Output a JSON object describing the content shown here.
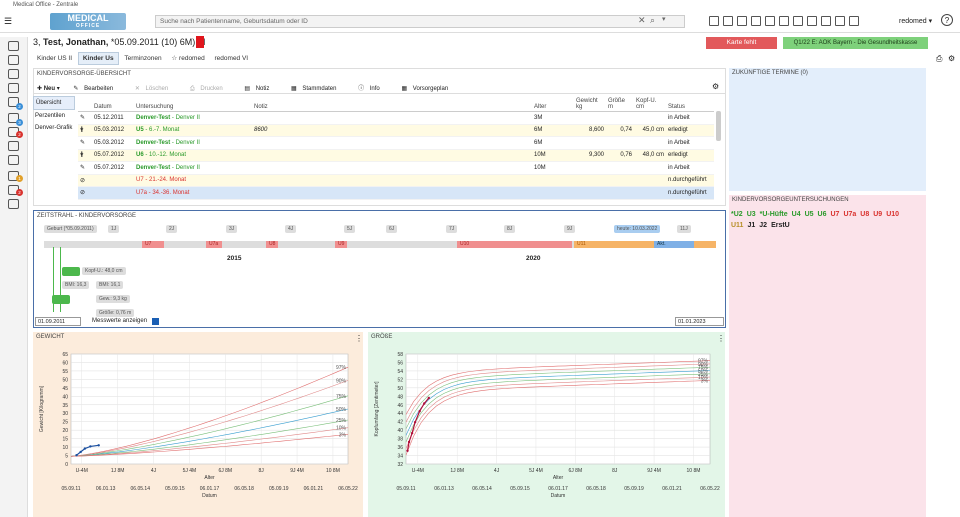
{
  "window_title": "Medical Office - Zentrale",
  "logo": {
    "line1": "MEDICAL",
    "line2": "OFFICE"
  },
  "search": {
    "placeholder": "Suche nach Patientenname, Geburtsdatum oder ID"
  },
  "user": {
    "name": "redomed"
  },
  "patient": {
    "number": "3,",
    "name": "Test, Jonathan,",
    "dob": "*05.09.2011 (10) 6M)",
    "sex": "M"
  },
  "buttons": {
    "karte": "Karte fehlt",
    "insurance": "Q1/22 E: AOK Bayern - Die Gesundheitskasse"
  },
  "tabs": [
    "Kinder US II",
    "Kinder Us",
    "Terminzonen",
    "redomed",
    "redomed VI"
  ],
  "kv": {
    "title": "KINDERVORSORGE-ÜBERSICHT",
    "toolbar": [
      "Neu",
      "Bearbeiten",
      "Löschen",
      "Drucken",
      "Notiz",
      "Stammdaten",
      "Info",
      "Vorsorgeplan"
    ],
    "side": [
      "Übersicht",
      "Perzentilen",
      "Denver-Grafik"
    ],
    "columns": [
      "Datum",
      "Untersuchung",
      "Notiz",
      "Alter",
      "Gewicht",
      "Größe",
      "Kopf-U.",
      "Status"
    ],
    "units": [
      "",
      "",
      "",
      "",
      "kg",
      "m",
      "cm",
      ""
    ],
    "rows": [
      {
        "date": "05.12.2011",
        "name": "Denver-Test",
        "sub": " - Denver II",
        "note": "",
        "age": "3M",
        "w": "",
        "h": "",
        "k": "",
        "status": "in Arbeit",
        "type": "g",
        "hl": ""
      },
      {
        "date": "05.03.2012",
        "name": "U5",
        "sub": " - 6.-7. Monat",
        "note": "8600",
        "age": "6M",
        "w": "8,600",
        "h": "0,74",
        "k": "45,0 cm",
        "status": "erledigt",
        "type": "g",
        "hl": "y"
      },
      {
        "date": "05.03.2012",
        "name": "Denver-Test",
        "sub": " - Denver II",
        "note": "",
        "age": "6M",
        "w": "",
        "h": "",
        "k": "",
        "status": "in Arbeit",
        "type": "g",
        "hl": ""
      },
      {
        "date": "05.07.2012",
        "name": "U6",
        "sub": " - 10.-12. Monat",
        "note": "",
        "age": "10M",
        "w": "9,300",
        "h": "0,76",
        "k": "48,0 cm",
        "status": "erledigt",
        "type": "g",
        "hl": "y"
      },
      {
        "date": "05.07.2012",
        "name": "Denver-Test",
        "sub": " - Denver II",
        "note": "",
        "age": "10M",
        "w": "",
        "h": "",
        "k": "",
        "status": "in Arbeit",
        "type": "g",
        "hl": ""
      },
      {
        "date": "",
        "name": "U7",
        "sub": " - 21.-24. Monat",
        "note": "",
        "age": "",
        "w": "",
        "h": "",
        "k": "",
        "status": "n.durchgeführt",
        "type": "r",
        "hl": "y"
      },
      {
        "date": "",
        "name": "U7a",
        "sub": " - 34.-36. Monat",
        "note": "",
        "age": "",
        "w": "",
        "h": "",
        "k": "",
        "status": "n.durchgeführt",
        "type": "r",
        "hl": "b"
      }
    ]
  },
  "zeitstrahl": {
    "title": "ZEITSTRAHL - KINDERVORSORGE",
    "top_pills": [
      "Geburt (*05.09.2011)",
      "1J",
      "2J",
      "3J",
      "4J",
      "5J",
      "6J",
      "7J",
      "8J",
      "9J",
      "heute: 10.03.2022",
      "11J"
    ],
    "bars": [
      "U7",
      "U7a",
      "U8",
      "U9",
      "U10",
      "U11",
      "Akt."
    ],
    "years": [
      "2015",
      "2020"
    ],
    "measures": [
      "Kopf-U.: 48,0 cm",
      "BMI: 16,3",
      "BMI: 16,1",
      "Gew.: 9,3 kg",
      "Größe: 0,76 m"
    ],
    "start_date": "01.09.2011",
    "end_date": "01.01.2023",
    "toggle": "Messwerte anzeigen"
  },
  "right": {
    "termine_title": "ZUKÜNFTIGE TERMINE (0)",
    "kvu_title": "KINDERVORSORGEUNTERSUCHUNGEN",
    "kvu_items": [
      {
        "t": "*U2",
        "c": "#2a9a2a"
      },
      {
        "t": "U3",
        "c": "#2a9a2a"
      },
      {
        "t": "*U-Hüfte",
        "c": "#2a9a2a"
      },
      {
        "t": "U4",
        "c": "#2a9a2a"
      },
      {
        "t": "U5",
        "c": "#2a9a2a"
      },
      {
        "t": "U6",
        "c": "#2a9a2a"
      },
      {
        "t": "U7",
        "c": "#d9322e"
      },
      {
        "t": "U7a",
        "c": "#d9322e"
      },
      {
        "t": "U8",
        "c": "#d9322e"
      },
      {
        "t": "U9",
        "c": "#d9322e"
      },
      {
        "t": "U10",
        "c": "#d9322e"
      },
      {
        "t": "U11",
        "c": "#b8902a"
      },
      {
        "t": "J1",
        "c": "#222"
      },
      {
        "t": "J2",
        "c": "#222"
      },
      {
        "t": "ErstU",
        "c": "#222"
      }
    ]
  },
  "charts": {
    "weight": {
      "title": "GEWICHT",
      "ylabel": "Gewicht [Kilogramm]",
      "xlabel": "Alter",
      "xlabel2": "Datum",
      "yticks": [
        "0",
        "5",
        "10",
        "15",
        "20",
        "25",
        "30",
        "35",
        "40",
        "45",
        "50",
        "55",
        "60",
        "65"
      ],
      "xticks": [
        "U-4M",
        "1J 8M",
        "4J",
        "5J 4M",
        "6J 8M",
        "8J",
        "9J 4M",
        "10 8M"
      ],
      "dates": [
        "05.09.11",
        "06.01.13",
        "06.05.14",
        "05.09.15",
        "06.01.17",
        "06.05.18",
        "05.09.19",
        "06.01.21",
        "06.05.22"
      ],
      "percentiles": [
        "97%",
        "90%",
        "75%",
        "50%",
        "25%",
        "10%",
        "3%"
      ]
    },
    "height": {
      "title": "GRÖßE",
      "ylabel": "Kopfumfang [Zentimeter]",
      "xlabel": "Alter",
      "xlabel2": "Datum",
      "yticks": [
        "32",
        "34",
        "36",
        "38",
        "40",
        "42",
        "44",
        "46",
        "48",
        "50",
        "52",
        "54",
        "56",
        "58"
      ],
      "xticks": [
        "U-4M",
        "1J 8M",
        "4J",
        "5J 4M",
        "6J 8M",
        "8J",
        "9J 4M",
        "10 8M"
      ],
      "dates": [
        "05.09.11",
        "06.01.13",
        "06.05.14",
        "05.09.15",
        "06.01.17",
        "06.05.18",
        "05.09.19",
        "06.01.21",
        "06.05.22"
      ],
      "percentiles": [
        "97%",
        "90%",
        "75%",
        "50%",
        "25%",
        "10%",
        "3%"
      ]
    }
  }
}
